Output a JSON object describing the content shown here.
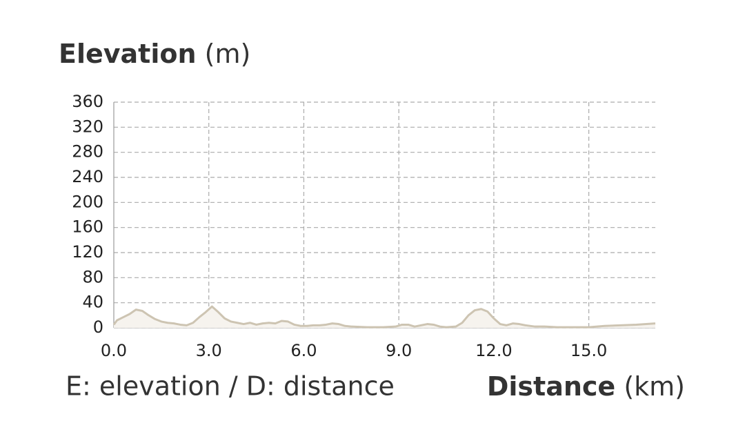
{
  "chart_data": {
    "type": "area",
    "ylabel": "Elevation",
    "ylabel_unit": "(m)",
    "xlabel": "Distance",
    "xlabel_unit": "(km)",
    "note": "E: elevation / D: distance",
    "x": [
      0,
      0.1,
      0.3,
      0.5,
      0.7,
      0.9,
      1.1,
      1.3,
      1.5,
      1.7,
      1.9,
      2.1,
      2.3,
      2.5,
      2.7,
      2.9,
      3.1,
      3.3,
      3.5,
      3.7,
      3.9,
      4.1,
      4.3,
      4.5,
      4.7,
      4.9,
      5.1,
      5.3,
      5.5,
      5.7,
      5.9,
      6.1,
      6.3,
      6.5,
      6.7,
      6.9,
      7.1,
      7.3,
      7.5,
      8.0,
      8.5,
      8.9,
      9.1,
      9.3,
      9.5,
      9.7,
      9.9,
      10.1,
      10.3,
      10.5,
      10.8,
      11.0,
      11.2,
      11.4,
      11.6,
      11.8,
      12.0,
      12.2,
      12.4,
      12.6,
      12.8,
      13.0,
      13.3,
      13.6,
      14.0,
      14.5,
      15.0,
      15.5,
      16.0,
      16.5,
      17.1
    ],
    "values": [
      5,
      12,
      17,
      22,
      29,
      27,
      20,
      14,
      10,
      8,
      7,
      5,
      4,
      8,
      17,
      25,
      34,
      25,
      15,
      10,
      8,
      6,
      8,
      5,
      7,
      8,
      7,
      11,
      10,
      5,
      3,
      3,
      4,
      4,
      5,
      7,
      6,
      3,
      2,
      1,
      1,
      2,
      5,
      5,
      2,
      4,
      6,
      5,
      2,
      1,
      2,
      8,
      20,
      28,
      30,
      26,
      15,
      6,
      4,
      7,
      6,
      4,
      2,
      2,
      1,
      1,
      1,
      3,
      4,
      5,
      7
    ],
    "color": "#cdc4b2",
    "fill": "#f6f3ee",
    "xlim": [
      0,
      17.1
    ],
    "ylim": [
      0,
      360
    ],
    "xticks": [
      {
        "value": 0,
        "label": "0.0"
      },
      {
        "value": 3,
        "label": "3.0"
      },
      {
        "value": 6,
        "label": "6.0"
      },
      {
        "value": 9,
        "label": "9.0"
      },
      {
        "value": 12,
        "label": "12.0"
      },
      {
        "value": 15,
        "label": "15.0"
      }
    ],
    "yticks": [
      0,
      40,
      80,
      120,
      160,
      200,
      240,
      280,
      320,
      360
    ],
    "grid": true
  }
}
